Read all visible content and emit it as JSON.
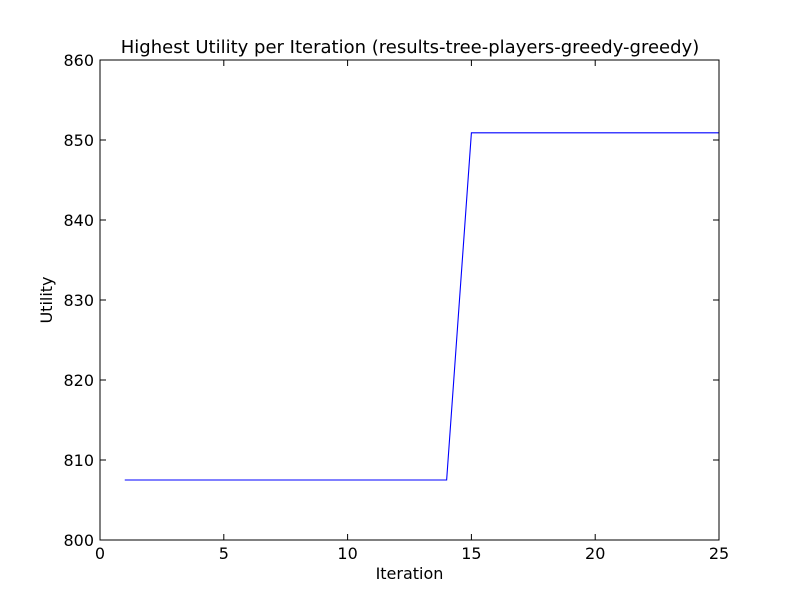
{
  "chart_data": {
    "type": "line",
    "title": "Highest Utility per Iteration (results-tree-players-greedy-greedy)",
    "xlabel": "Iteration",
    "ylabel": "Utility",
    "xlim": [
      0,
      25
    ],
    "ylim": [
      800,
      860
    ],
    "xticks": [
      0,
      5,
      10,
      15,
      20,
      25
    ],
    "yticks": [
      800,
      810,
      820,
      830,
      840,
      850,
      860
    ],
    "grid": false,
    "series": [
      {
        "color": "#0000ff",
        "x": [
          1,
          2,
          3,
          4,
          5,
          6,
          7,
          8,
          9,
          10,
          11,
          12,
          13,
          14,
          15,
          16,
          17,
          18,
          19,
          20,
          21,
          22,
          23,
          24,
          25
        ],
        "y": [
          807.5,
          807.5,
          807.5,
          807.5,
          807.5,
          807.5,
          807.5,
          807.5,
          807.5,
          807.5,
          807.5,
          807.5,
          807.5,
          807.5,
          850.9,
          850.9,
          850.9,
          850.9,
          850.9,
          850.9,
          850.9,
          850.9,
          850.9,
          850.9,
          850.9
        ]
      }
    ]
  }
}
